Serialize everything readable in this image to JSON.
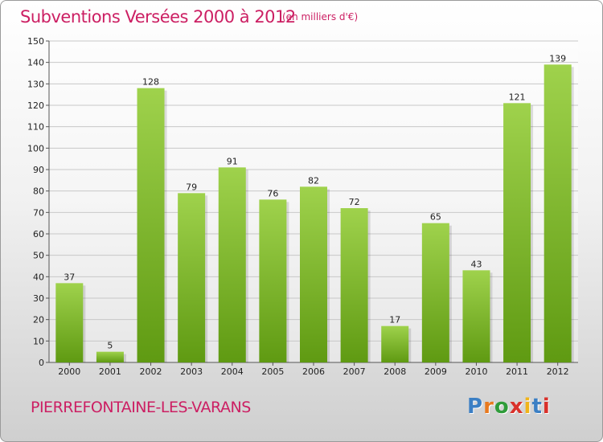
{
  "title": "Subventions Versées 2000 à 2012",
  "subtitle": "(en milliers d'€)",
  "commune": "PIERREFONTAINE-LES-VARANS",
  "logo": {
    "letters": [
      "P",
      "r",
      "o",
      "x",
      "i",
      "t",
      "i"
    ],
    "colors": [
      "#3b7fc4",
      "#e87a1f",
      "#2f9c3a",
      "#d9312b",
      "#f0b41a",
      "#3b7fc4",
      "#d9312b"
    ]
  },
  "colors": {
    "title": "#cc1f63",
    "bar_light": "#9fd24c",
    "bar_dark": "#5f9a12",
    "grid": "#c8c8c8"
  },
  "chart_data": {
    "type": "bar",
    "title": "Subventions Versées 2000 à 2012",
    "subtitle": "(en milliers d'€)",
    "categories": [
      "2000",
      "2001",
      "2002",
      "2003",
      "2004",
      "2005",
      "2006",
      "2007",
      "2008",
      "2009",
      "2010",
      "2011",
      "2012"
    ],
    "values": [
      37,
      5,
      128,
      79,
      91,
      76,
      82,
      72,
      17,
      65,
      43,
      121,
      139
    ],
    "ylim": [
      0,
      150
    ],
    "yticks": [
      0,
      10,
      20,
      30,
      40,
      50,
      60,
      70,
      80,
      90,
      100,
      110,
      120,
      130,
      140,
      150
    ],
    "grid": true,
    "data_labels": true
  }
}
